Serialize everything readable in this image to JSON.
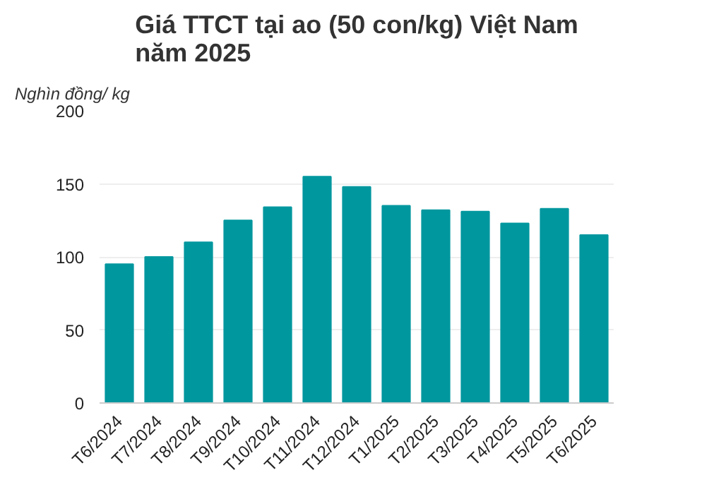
{
  "chart_data": {
    "type": "bar",
    "title": "Giá TTCT tại ao (50 con/kg) Việt Nam\nnăm 2025",
    "ylabel": "Nghìn đồng/ kg",
    "categories": [
      "T6/2024",
      "T7/2024",
      "T8/2024",
      "T9/2024",
      "T10/2024",
      "T11/2024",
      "T12/2024",
      "T1/2025",
      "T2/2025",
      "T3/2025",
      "T4/2025",
      "T5/2025",
      "T6/2025"
    ],
    "values": [
      95,
      100,
      110,
      125,
      134,
      155,
      148,
      135,
      132,
      131,
      123,
      133,
      115
    ],
    "color": "#00979f",
    "ylim": [
      0,
      200
    ],
    "yticks": [
      0,
      50,
      100,
      150,
      200
    ],
    "grid": "y"
  }
}
